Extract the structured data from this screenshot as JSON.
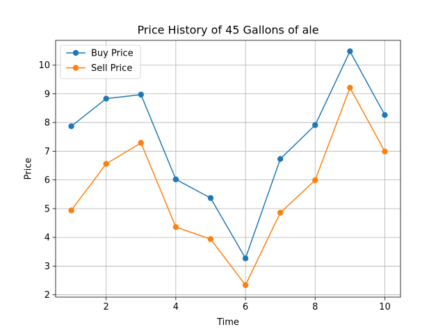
{
  "chart_data": {
    "type": "line",
    "title": "Price History of 45 Gallons of ale",
    "xlabel": "Time",
    "ylabel": "Price",
    "x": [
      1,
      2,
      3,
      4,
      5,
      6,
      7,
      8,
      9,
      10
    ],
    "xlim": [
      0.55,
      10.45
    ],
    "ylim": [
      1.92,
      10.86
    ],
    "xticks": [
      2,
      4,
      6,
      8,
      10
    ],
    "yticks": [
      2,
      3,
      4,
      5,
      6,
      7,
      8,
      9,
      10
    ],
    "grid": true,
    "legend_position": "top-left",
    "series": [
      {
        "name": "Buy Price",
        "color": "#1f77b4",
        "marker": "circle",
        "values": [
          7.87,
          8.83,
          8.97,
          6.02,
          5.37,
          3.27,
          6.73,
          7.91,
          10.48,
          8.26
        ]
      },
      {
        "name": "Sell Price",
        "color": "#ff7f0e",
        "marker": "circle",
        "values": [
          4.94,
          6.56,
          7.29,
          4.36,
          3.94,
          2.34,
          4.86,
          5.99,
          9.21,
          6.99
        ]
      }
    ]
  }
}
